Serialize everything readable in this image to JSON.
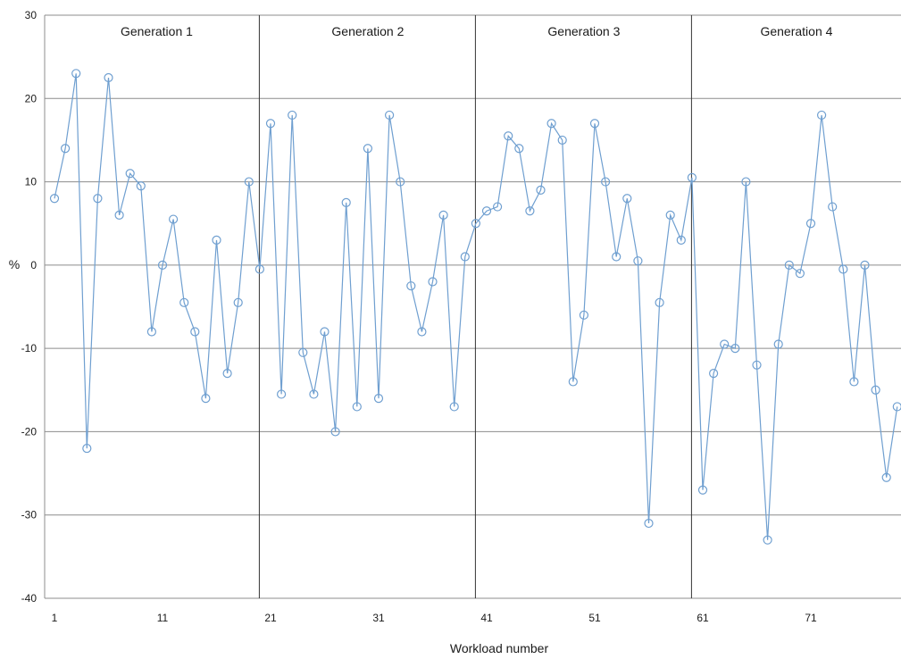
{
  "chart_data": {
    "type": "line",
    "title": "",
    "xlabel": "Workload number",
    "ylabel": "%",
    "ylim": [
      -40,
      30
    ],
    "yticks": [
      30,
      20,
      10,
      0,
      -10,
      -20,
      -30,
      -40
    ],
    "xticks": [
      1,
      11,
      21,
      31,
      41,
      51,
      61,
      71
    ],
    "xlim": [
      1,
      80
    ],
    "grid": "horizontal",
    "legend": "none",
    "line_color": "#6f9fd0",
    "dividers": [
      20,
      40,
      60
    ],
    "groups": [
      {
        "label": "Generation 1",
        "from": 1,
        "to": 20
      },
      {
        "label": "Generation 2",
        "from": 20,
        "to": 40
      },
      {
        "label": "Generation 3",
        "from": 40,
        "to": 60
      },
      {
        "label": "Generation 4",
        "from": 60,
        "to": 80
      }
    ],
    "series": [
      {
        "x": [
          1,
          2,
          3,
          4,
          5,
          6,
          7,
          8,
          9,
          10,
          11,
          12,
          13,
          14,
          15,
          16,
          17,
          18,
          19,
          20,
          21,
          22,
          23,
          24,
          25,
          26,
          27,
          28,
          29,
          30,
          31,
          32,
          33,
          34,
          35,
          36,
          37,
          38,
          39,
          40,
          41,
          42,
          43,
          44,
          45,
          46,
          47,
          48,
          49,
          50,
          51,
          52,
          53,
          54,
          55,
          56,
          57,
          58,
          59,
          60,
          61,
          62,
          63,
          64,
          65,
          66,
          67,
          68,
          69,
          70,
          71,
          72,
          73,
          74,
          75,
          76,
          77,
          78,
          79
        ],
        "values": [
          8,
          14,
          23,
          -22,
          8,
          22.5,
          6,
          11,
          9.5,
          -8,
          0,
          5.5,
          -4.5,
          -8,
          -16,
          3,
          -13,
          -4.5,
          10,
          -0.5,
          17,
          -15.5,
          18,
          -10.5,
          -15.5,
          -8,
          -20,
          7.5,
          -17,
          14,
          -16,
          18,
          10,
          -2.5,
          -8,
          -2,
          6,
          -17,
          1,
          5,
          6.5,
          7,
          15.5,
          14,
          6.5,
          9,
          17,
          15,
          -14,
          -6,
          17,
          10,
          1,
          8,
          0.5,
          -31,
          -4.5,
          6,
          3,
          10.5,
          -27,
          -13,
          -9.5,
          -10,
          10,
          -12,
          -33,
          -9.5,
          0,
          -1,
          5,
          18,
          7,
          -0.5,
          -14,
          0,
          -15,
          -25.5,
          -17
        ]
      }
    ]
  }
}
